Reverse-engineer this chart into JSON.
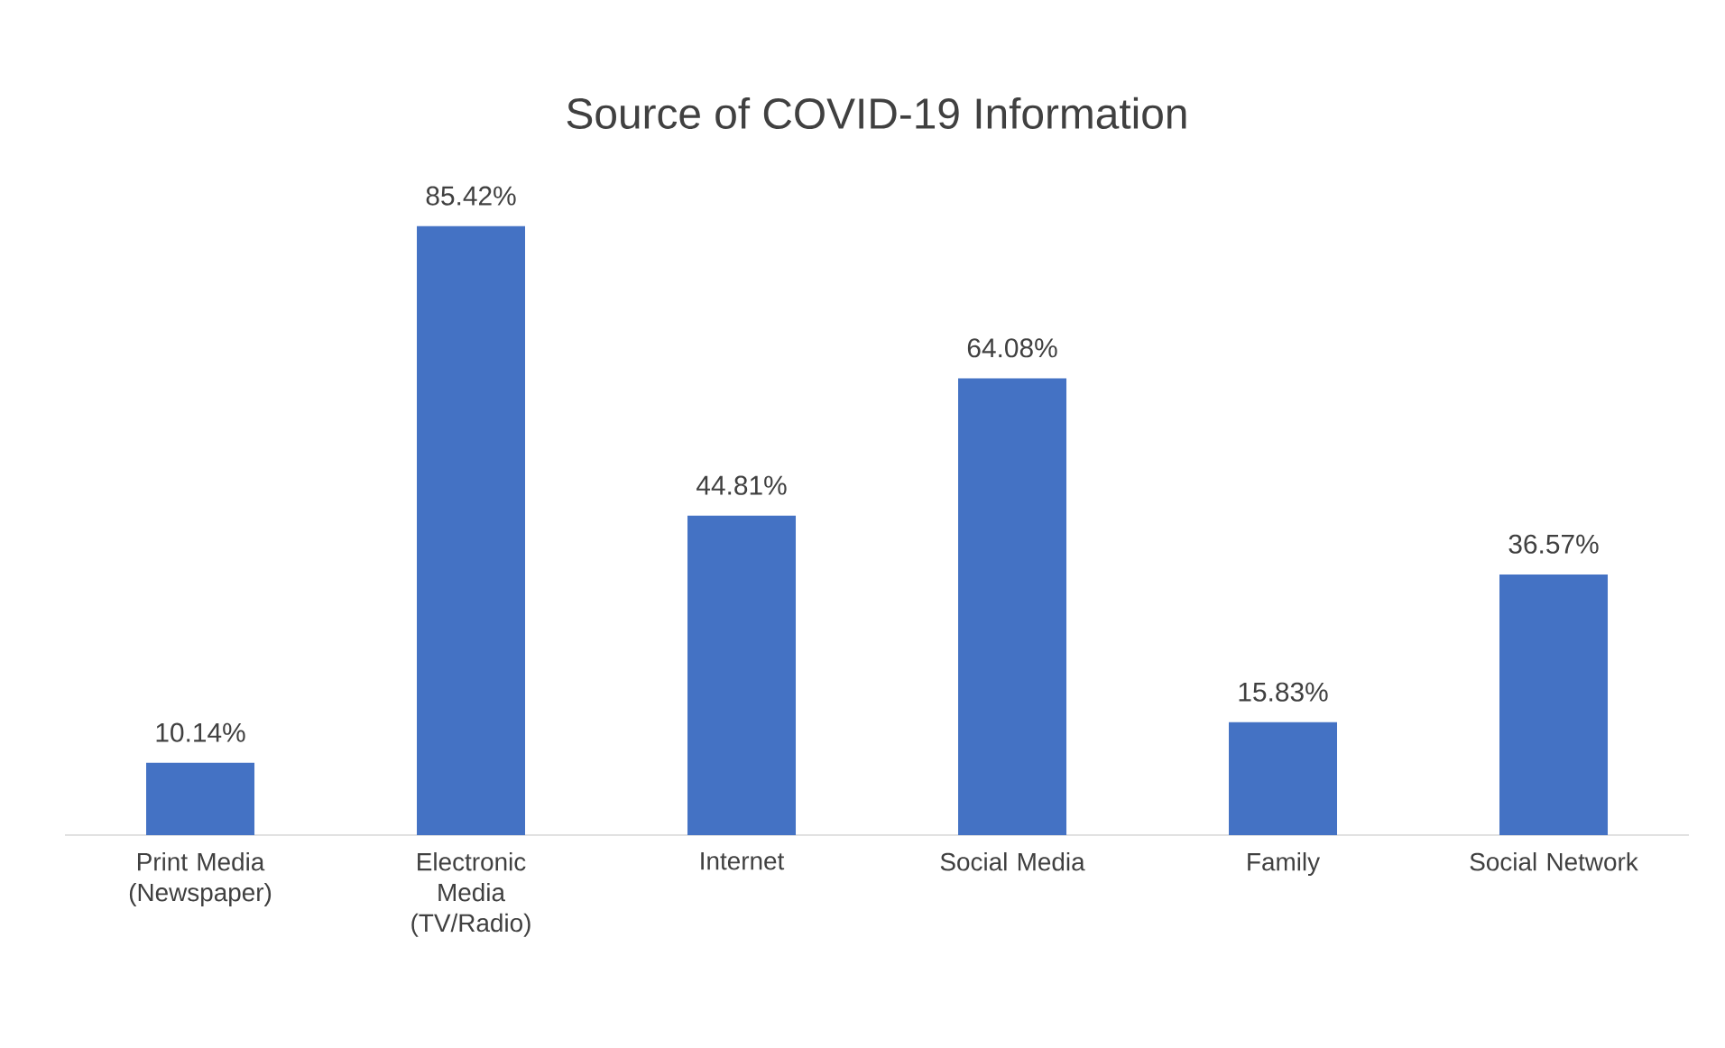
{
  "chart_data": {
    "type": "bar",
    "title": "Source of COVID-19 Information",
    "categories": [
      "Print Media (Newspaper)",
      "Electronic Media (TV/Radio)",
      "Internet",
      "Social Media",
      "Family",
      "Social Network"
    ],
    "values": [
      10.14,
      85.42,
      44.81,
      64.08,
      15.83,
      36.57
    ],
    "value_labels": [
      "10.14%",
      "85.42%",
      "44.81%",
      "64.08%",
      "15.83%",
      "36.57%"
    ],
    "color": "#4472c4"
  }
}
